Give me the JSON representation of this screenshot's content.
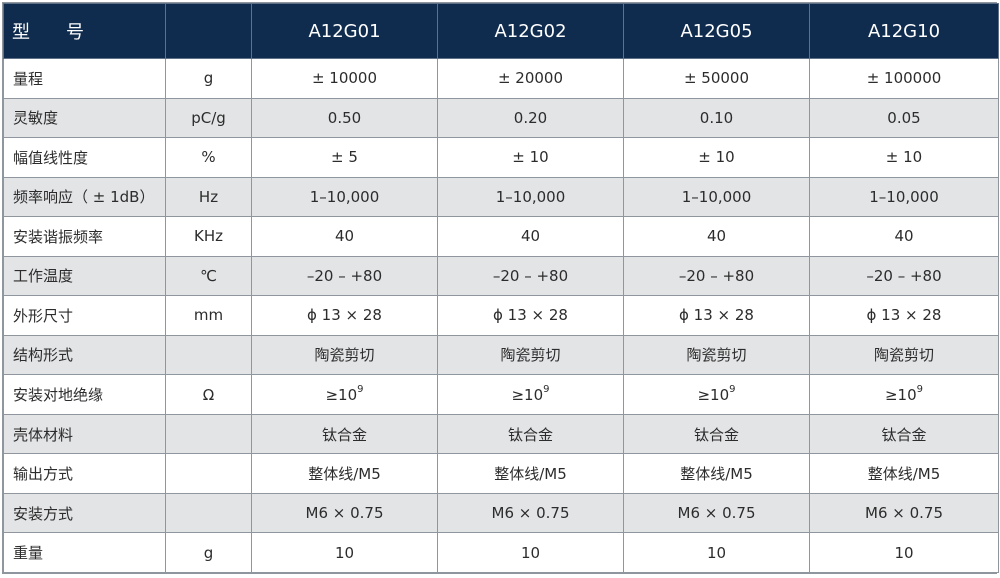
{
  "header": {
    "label_part1": "型",
    "label_part2": "号",
    "unit": "",
    "models": [
      "A12G01",
      "A12G02",
      "A12G05",
      "A12G10"
    ]
  },
  "rows": [
    {
      "name": "量程",
      "unit": "g",
      "values": [
        "± 10000",
        "± 20000",
        "± 50000",
        "± 100000"
      ]
    },
    {
      "name": "灵敏度",
      "unit": "pC/g",
      "values": [
        "0.50",
        "0.20",
        "0.10",
        "0.05"
      ]
    },
    {
      "name": "幅值线性度",
      "unit": "%",
      "values": [
        "± 5",
        "± 10",
        "± 10",
        "± 10"
      ]
    },
    {
      "name": "频率响应（ ± 1dB）",
      "unit": "Hz",
      "values": [
        "1–10,000",
        "1–10,000",
        "1–10,000",
        "1–10,000"
      ]
    },
    {
      "name": "安装谐振频率",
      "unit": "KHz",
      "values": [
        "40",
        "40",
        "40",
        "40"
      ]
    },
    {
      "name": "工作温度",
      "unit": "℃",
      "values": [
        "–20 – +80",
        "–20 – +80",
        "–20 – +80",
        "–20 – +80"
      ]
    },
    {
      "name": "外形尺寸",
      "unit": "mm",
      "values": [
        "ϕ 13 × 28",
        "ϕ 13 × 28",
        "ϕ 13 × 28",
        "ϕ 13 × 28"
      ]
    },
    {
      "name": "结构形式",
      "unit": "",
      "values": [
        "陶瓷剪切",
        "陶瓷剪切",
        "陶瓷剪切",
        "陶瓷剪切"
      ]
    },
    {
      "name": "安装对地绝缘",
      "unit": "Ω",
      "values": [
        "≥10",
        "≥10",
        "≥10",
        "≥10"
      ],
      "exponent": "9"
    },
    {
      "name": "壳体材料",
      "unit": "",
      "values": [
        "钛合金",
        "钛合金",
        "钛合金",
        "钛合金"
      ]
    },
    {
      "name": "输出方式",
      "unit": "",
      "values": [
        "整体线/M5",
        "整体线/M5",
        "整体线/M5",
        "整体线/M5"
      ]
    },
    {
      "name": "安装方式",
      "unit": "",
      "values": [
        "M6 × 0.75",
        "M6 × 0.75",
        "M6 × 0.75",
        "M6 × 0.75"
      ]
    },
    {
      "name": "重量",
      "unit": "g",
      "values": [
        "10",
        "10",
        "10",
        "10"
      ]
    }
  ]
}
